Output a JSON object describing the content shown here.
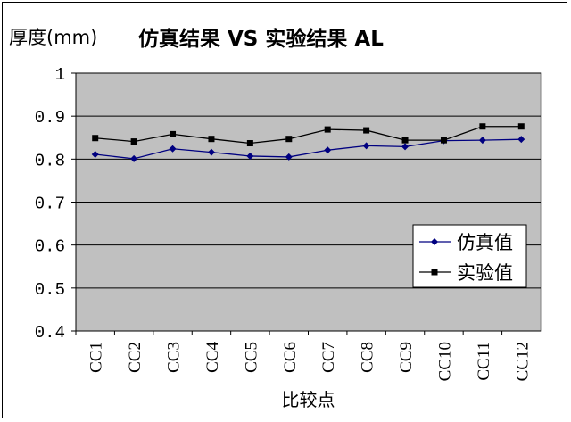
{
  "chart_data": {
    "type": "line",
    "title": "仿真结果 VS 实验结果 AL",
    "xlabel": "比较点",
    "ylabel": "厚度(mm)",
    "categories": [
      "CC1",
      "CC2",
      "CC3",
      "CC4",
      "CC5",
      "CC6",
      "CC7",
      "CC8",
      "CC9",
      "CC10",
      "CC11",
      "CC12"
    ],
    "ylim": [
      0.4,
      1
    ],
    "yticks": [
      "0.4",
      "0.5",
      "0.6",
      "0.7",
      "0.8",
      "0.9",
      "1"
    ],
    "grid": true,
    "legend_position": "right",
    "series": [
      {
        "name": "仿真值",
        "color": "#000080",
        "marker": "diamond",
        "values": [
          0.811,
          0.801,
          0.824,
          0.816,
          0.807,
          0.805,
          0.821,
          0.831,
          0.829,
          0.843,
          0.844,
          0.846
        ]
      },
      {
        "name": "实验值",
        "color": "#000000",
        "marker": "square",
        "values": [
          0.849,
          0.841,
          0.858,
          0.847,
          0.837,
          0.847,
          0.869,
          0.867,
          0.844,
          0.844,
          0.876,
          0.876
        ]
      }
    ],
    "plot_bg": "#c0c0c0"
  }
}
